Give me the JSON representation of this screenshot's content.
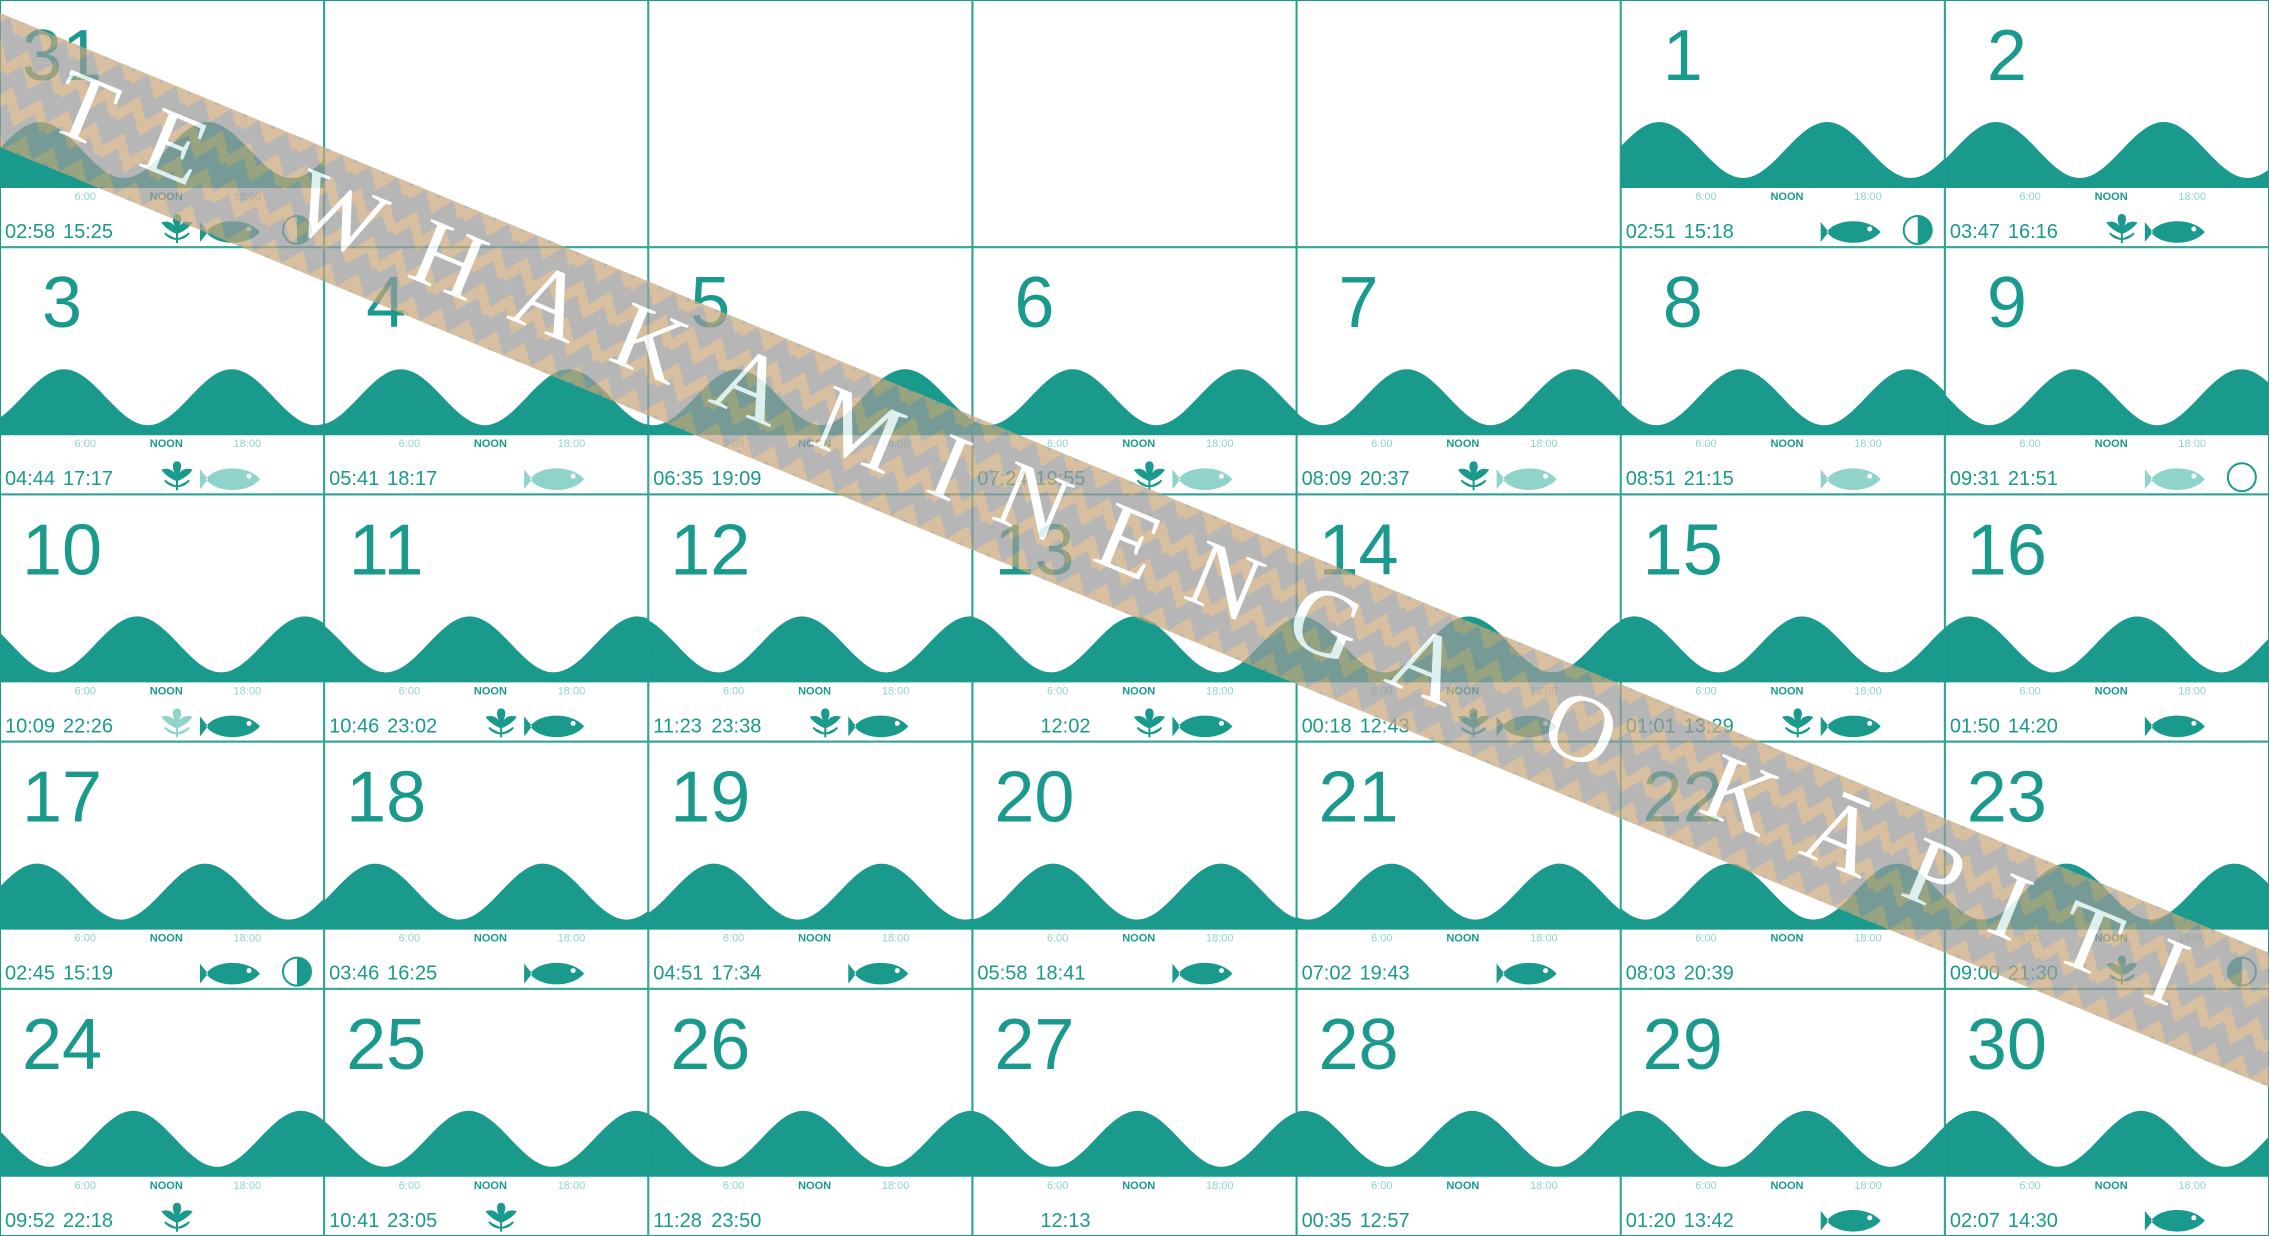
{
  "watermark": "TE WHAKAMINENGA O KĀPITI",
  "axis_labels": [
    "6:00",
    "NOON",
    "18:00"
  ],
  "weeks": [
    [
      {
        "day": "31",
        "tides": [
          "02:58",
          "15:25"
        ]
      },
      null,
      null,
      null,
      null,
      {
        "day": "1",
        "tides": [
          "02:51",
          "15:18"
        ]
      },
      {
        "day": "2",
        "tides": [
          "03:47",
          "16:16"
        ]
      }
    ],
    [
      {
        "day": "3",
        "tides": [
          "04:44",
          "17:17"
        ]
      },
      {
        "day": "4",
        "tides": [
          "05:41",
          "18:17"
        ]
      },
      {
        "day": "5",
        "tides": [
          "06:35",
          "19:09"
        ]
      },
      {
        "day": "6",
        "tides": [
          "07:24",
          "19:55"
        ]
      },
      {
        "day": "7",
        "tides": [
          "08:09",
          "20:37"
        ]
      },
      {
        "day": "8",
        "tides": [
          "08:51",
          "21:15"
        ]
      },
      {
        "day": "9",
        "tides": [
          "09:31",
          "21:51"
        ]
      }
    ],
    [
      {
        "day": "10",
        "tides": [
          "10:09",
          "22:26"
        ]
      },
      {
        "day": "11",
        "tides": [
          "10:46",
          "23:02"
        ]
      },
      {
        "day": "12",
        "tides": [
          "11:23",
          "23:38"
        ]
      },
      {
        "day": "13",
        "tides": [
          "12:02"
        ]
      },
      {
        "day": "14",
        "tides": [
          "00:18",
          "12:43"
        ]
      },
      {
        "day": "15",
        "tides": [
          "01:01",
          "13:29"
        ]
      },
      {
        "day": "16",
        "tides": [
          "01:50",
          "14:20"
        ]
      }
    ],
    [
      {
        "day": "17",
        "tides": [
          "02:45",
          "15:19"
        ]
      },
      {
        "day": "18",
        "tides": [
          "03:46",
          "16:25"
        ]
      },
      {
        "day": "19",
        "tides": [
          "04:51",
          "17:34"
        ]
      },
      {
        "day": "20",
        "tides": [
          "05:58",
          "18:41"
        ]
      },
      {
        "day": "21",
        "tides": [
          "07:02",
          "19:43"
        ]
      },
      {
        "day": "22",
        "tides": [
          "08:03",
          "20:39"
        ]
      },
      {
        "day": "23",
        "tides": [
          "09:00",
          "21:30"
        ]
      }
    ],
    [
      {
        "day": "24",
        "tides": [
          "09:52",
          "22:18"
        ]
      },
      {
        "day": "25",
        "tides": [
          "10:41",
          "23:05"
        ]
      },
      {
        "day": "26",
        "tides": [
          "11:28",
          "23:50"
        ]
      },
      {
        "day": "27",
        "tides": [
          "12:13"
        ]
      },
      {
        "day": "28",
        "tides": [
          "00:35",
          "12:57"
        ]
      },
      {
        "day": "29",
        "tides": [
          "01:20",
          "13:42"
        ]
      },
      {
        "day": "30",
        "tides": [
          "02:07",
          "14:30"
        ]
      }
    ]
  ]
}
